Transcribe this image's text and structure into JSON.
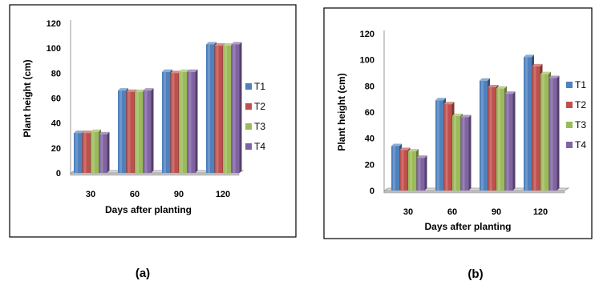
{
  "colors": {
    "T1": "#4f81bd",
    "T2": "#c0504d",
    "T3": "#9bbb59",
    "T4": "#8064a2"
  },
  "chart_data": [
    {
      "type": "bar",
      "caption": "(a)",
      "categories": [
        "30",
        "60",
        "90",
        "120"
      ],
      "xlabel": "Days after planting",
      "ylabel": "Plant height (cm)",
      "ylim": [
        0,
        120
      ],
      "yticks": [
        "0",
        "20",
        "40",
        "60",
        "80",
        "100",
        "120"
      ],
      "grid": false,
      "legend": "right",
      "series": [
        {
          "name": "T1",
          "values": [
            32,
            66,
            81,
            103
          ]
        },
        {
          "name": "T2",
          "values": [
            32,
            65,
            80,
            102
          ]
        },
        {
          "name": "T3",
          "values": [
            33,
            65,
            81,
            102
          ]
        },
        {
          "name": "T4",
          "values": [
            31,
            66,
            81,
            103
          ]
        }
      ]
    },
    {
      "type": "bar",
      "caption": "(b)",
      "categories": [
        "30",
        "60",
        "90",
        "120"
      ],
      "xlabel": "Days after planting",
      "ylabel": "Plant height (cm)",
      "ylim": [
        0,
        120
      ],
      "yticks": [
        "0",
        "20",
        "40",
        "60",
        "80",
        "100",
        "120"
      ],
      "grid": false,
      "legend": "right",
      "series": [
        {
          "name": "T1",
          "values": [
            34,
            69,
            84,
            102
          ]
        },
        {
          "name": "T2",
          "values": [
            31,
            66,
            79,
            95
          ]
        },
        {
          "name": "T3",
          "values": [
            30,
            57,
            78,
            89
          ]
        },
        {
          "name": "T4",
          "values": [
            25,
            56,
            74,
            86
          ]
        }
      ]
    }
  ]
}
